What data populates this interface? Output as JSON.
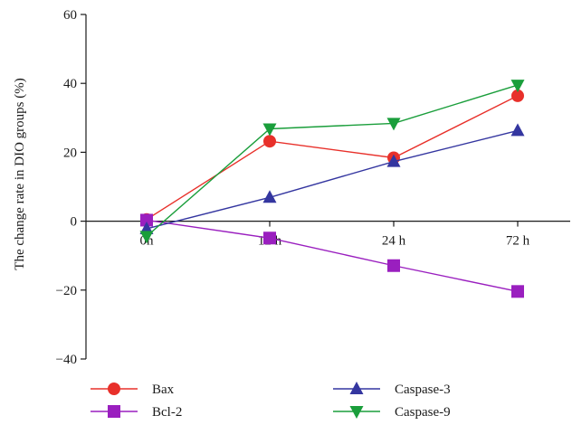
{
  "chart_data": {
    "type": "line",
    "categories": [
      "0h",
      "12 h",
      "24 h",
      "72 h"
    ],
    "ylabel": "The change rate in DIO groups (%)",
    "xlabel": "",
    "ylim": [
      -40,
      60
    ],
    "yticks": [
      -40,
      -20,
      0,
      20,
      40,
      60
    ],
    "ytick_labels": [
      "−40",
      "−20",
      "0",
      "20",
      "40",
      "60"
    ],
    "grid": false,
    "legend_position": "bottom",
    "series": [
      {
        "name": "Bax",
        "values": [
          0.5,
          23.2,
          18.4,
          36.4
        ],
        "color": "#e8302a",
        "marker": "circle"
      },
      {
        "name": "Bcl-2",
        "values": [
          0.3,
          -4.9,
          -12.9,
          -20.4
        ],
        "color": "#9a1fbf",
        "marker": "square"
      },
      {
        "name": "Caspase-3",
        "values": [
          -2.2,
          6.9,
          17.3,
          26.3
        ],
        "color": "#3436a0",
        "marker": "triangle-up"
      },
      {
        "name": "Caspase-9",
        "values": [
          -4.4,
          26.8,
          28.4,
          39.5
        ],
        "color": "#1a9e3b",
        "marker": "triangle-down"
      }
    ]
  }
}
